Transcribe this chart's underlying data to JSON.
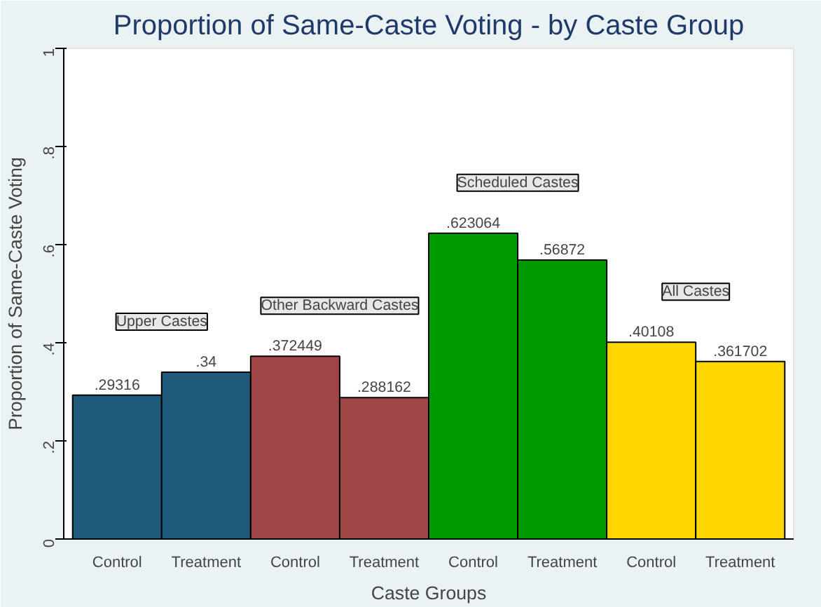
{
  "chart_data": {
    "type": "bar",
    "title": "Proportion of Same-Caste Voting - by Caste Group",
    "xlabel": "Caste Groups",
    "ylabel": "Proportion of Same-Caste Voting",
    "categories": [
      "Control",
      "Treatment",
      "Control",
      "Treatment",
      "Control",
      "Treatment",
      "Control",
      "Treatment"
    ],
    "values": [
      0.29316,
      0.34,
      0.372449,
      0.288162,
      0.623064,
      0.56872,
      0.40108,
      0.361702
    ],
    "value_labels": [
      ".29316",
      ".34",
      ".372449",
      ".288162",
      ".623064",
      ".56872",
      ".40108",
      ".361702"
    ],
    "colors": [
      "#1f5a7a",
      "#1f5a7a",
      "#a04646",
      "#a04646",
      "#009900",
      "#009900",
      "#ffd700",
      "#ffd700"
    ],
    "annotations": [
      "Upper Castes",
      "Other Backward Castes",
      "Scheduled Castes",
      "All Castes"
    ],
    "ylim": [
      0,
      1
    ],
    "yticks": [
      {
        "value": 0,
        "label": "0"
      },
      {
        "value": 0.2,
        "label": ".2"
      },
      {
        "value": 0.4,
        "label": ".4"
      },
      {
        "value": 0.6,
        "label": ".6"
      },
      {
        "value": 0.8,
        "label": ".8"
      },
      {
        "value": 1,
        "label": "1"
      }
    ],
    "grid": false
  }
}
